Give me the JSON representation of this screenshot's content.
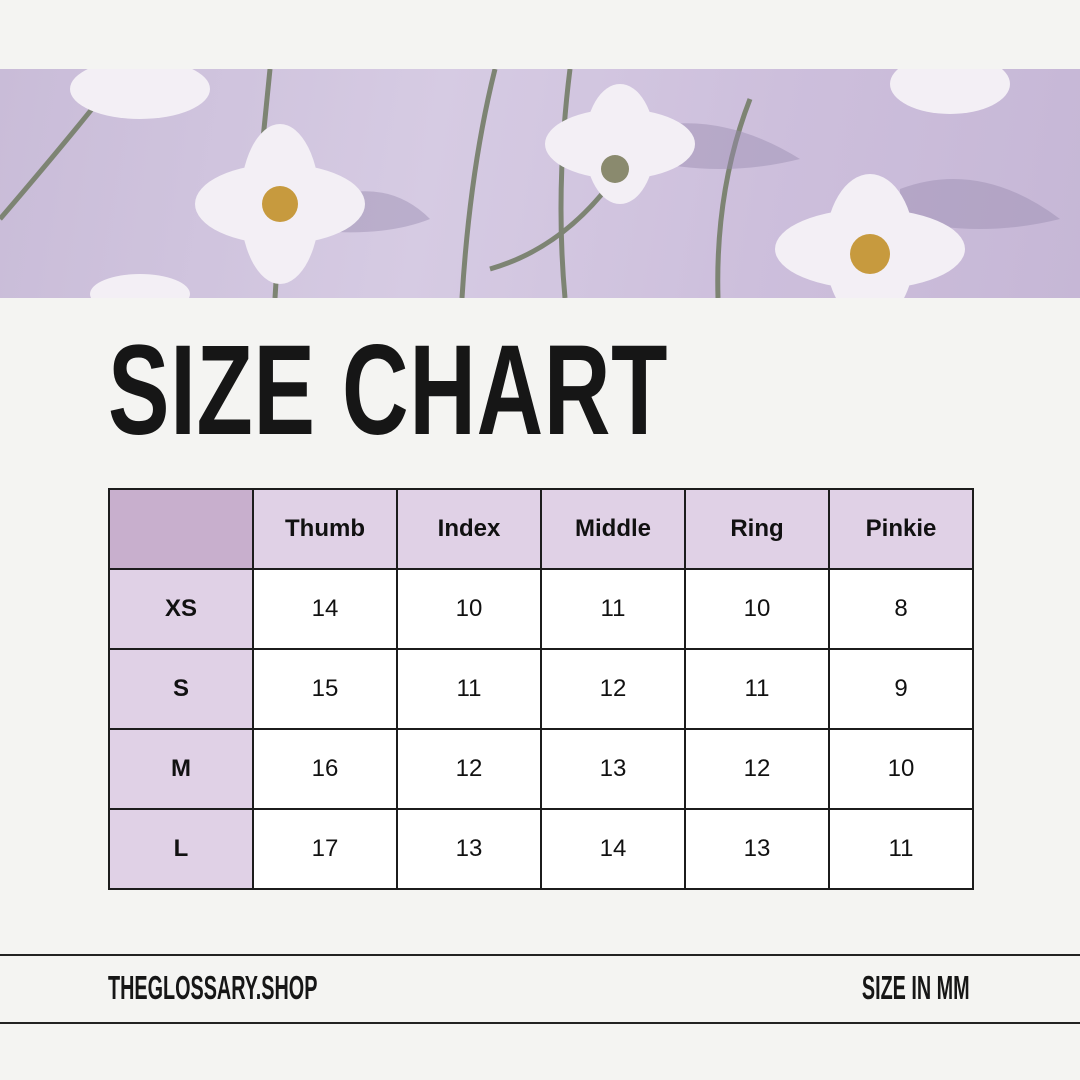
{
  "banner": {
    "image": "daisies-on-lavender-photo"
  },
  "title": "SIZE CHART",
  "table": {
    "columns": [
      "",
      "Thumb",
      "Index",
      "Middle",
      "Ring",
      "Pinkie"
    ],
    "rows": [
      {
        "size": "XS",
        "values": [
          "14",
          "10",
          "11",
          "10",
          "8"
        ]
      },
      {
        "size": "S",
        "values": [
          "15",
          "11",
          "12",
          "11",
          "9"
        ]
      },
      {
        "size": "M",
        "values": [
          "16",
          "12",
          "13",
          "12",
          "10"
        ]
      },
      {
        "size": "L",
        "values": [
          "17",
          "13",
          "14",
          "13",
          "11"
        ]
      }
    ]
  },
  "footer": {
    "website": "THEGLOSSARY.SHOP",
    "unit_note": "SIZE IN MM"
  },
  "colors": {
    "background": "#f4f4f2",
    "header_cell": "#e0d1e6",
    "corner_cell": "#c8afcd",
    "text": "#161616"
  }
}
